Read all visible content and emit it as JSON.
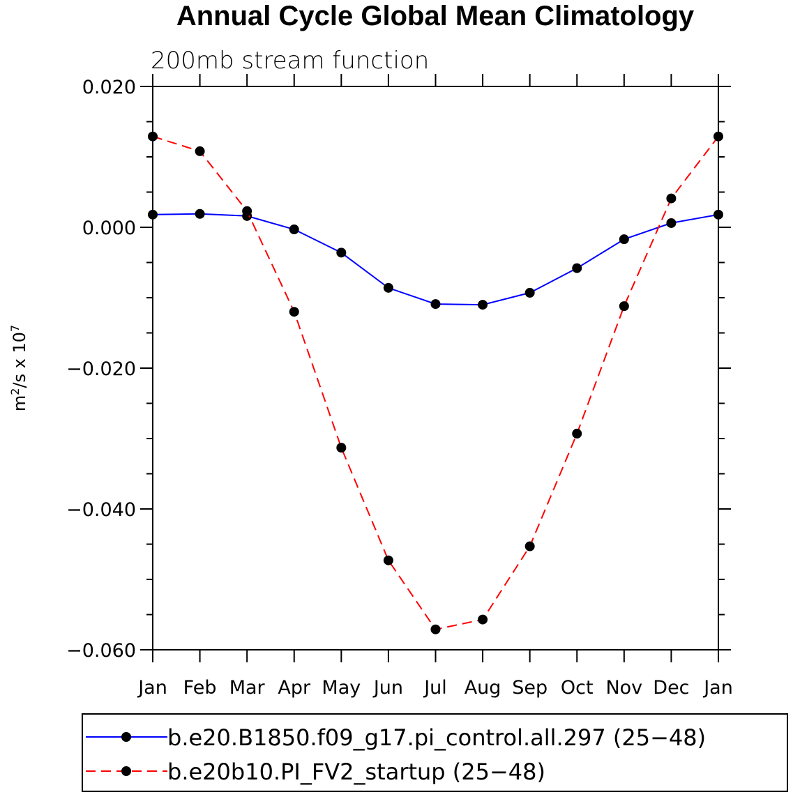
{
  "chart_data": {
    "type": "line",
    "title": "Annual Cycle Global Mean Climatology",
    "subtitle": "200mb stream function",
    "ylabel": {
      "base": "m",
      "sup1": "2",
      "mid": "/s x 10",
      "sup2": "7"
    },
    "xlabel": "",
    "categories": [
      "Jan",
      "Feb",
      "Mar",
      "Apr",
      "May",
      "Jun",
      "Jul",
      "Aug",
      "Sep",
      "Oct",
      "Nov",
      "Dec",
      "Jan"
    ],
    "ylim": [
      -0.06,
      0.02
    ],
    "yticks": [
      {
        "value": 0.02,
        "label": "0.020"
      },
      {
        "value": 0.0,
        "label": "0.000"
      },
      {
        "value": -0.02,
        "label": "−0.020"
      },
      {
        "value": -0.04,
        "label": "−0.040"
      },
      {
        "value": -0.06,
        "label": "−0.060"
      }
    ],
    "yminor_step": 0.005,
    "grid": false,
    "legend_position": "bottom",
    "series": [
      {
        "name": "b.e20.B1850.f09_g17.pi_control.all.297 (25−48)",
        "color": "#0000ff",
        "dash": "solid",
        "marker": "filled-circle",
        "values": [
          0.0018,
          0.0019,
          0.0016,
          -0.0003,
          -0.0036,
          -0.0086,
          -0.0109,
          -0.011,
          -0.0093,
          -0.0058,
          -0.0017,
          0.0006,
          0.0018
        ]
      },
      {
        "name": "b.e20b10.PI_FV2_startup (25−48)",
        "color": "#ff0000",
        "dash": "dashed",
        "marker": "filled-circle",
        "values": [
          0.0129,
          0.0108,
          0.0023,
          -0.012,
          -0.0313,
          -0.0473,
          -0.0571,
          -0.0557,
          -0.0453,
          -0.0293,
          -0.0112,
          0.0041,
          0.0129
        ]
      }
    ]
  }
}
